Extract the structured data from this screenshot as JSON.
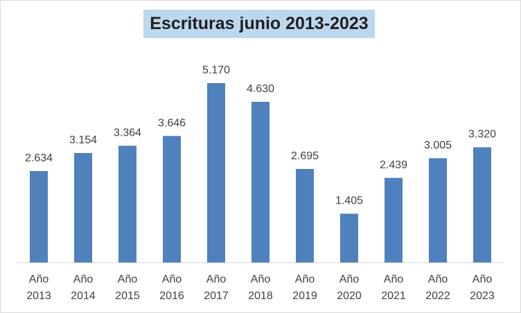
{
  "chart_data": {
    "type": "bar",
    "title": "Escrituras junio 2013-2023",
    "categories": [
      "Año 2013",
      "Año 2014",
      "Año 2015",
      "Año 2016",
      "Año 2017",
      "Año 2018",
      "Año 2019",
      "Año 2020",
      "Año 2021",
      "Año 2022",
      "Año 2023"
    ],
    "values": [
      2634,
      3154,
      3364,
      3646,
      5170,
      4630,
      2695,
      1405,
      2439,
      3005,
      3320
    ],
    "value_labels": [
      "2.634",
      "3.154",
      "3.364",
      "3.646",
      "5.170",
      "4.630",
      "2.695",
      "1.405",
      "2.439",
      "3.005",
      "3.320"
    ],
    "color": "#4f81bd"
  }
}
